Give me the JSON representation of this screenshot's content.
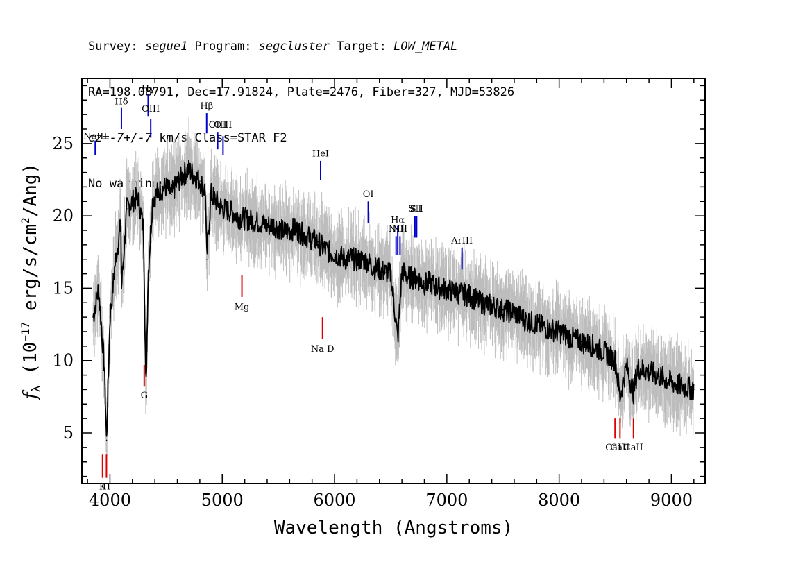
{
  "header": {
    "line1_parts": [
      {
        "text": "Survey: ",
        "italic": false
      },
      {
        "text": "segue1",
        "italic": true
      },
      {
        "text": " Program: ",
        "italic": false
      },
      {
        "text": "segcluster",
        "italic": true
      },
      {
        "text": " Target: ",
        "italic": false
      },
      {
        "text": "LOW_METAL",
        "italic": true
      }
    ],
    "line2": "RA=198.08791, Dec=17.91824, Plate=2476, Fiber=327, MJD=53826",
    "line3_parts": [
      {
        "text": "cz=-7+/-7",
        "italic": true
      },
      {
        "text": " km/s Class=STAR F2",
        "italic": false
      }
    ],
    "line4": "No warnings."
  },
  "colors": {
    "flux": "#000000",
    "error": "#bdbdbd",
    "emission": "#0000cc",
    "absorption": "#dd0000",
    "frame": "#000000"
  },
  "chart_data": {
    "type": "line",
    "xlabel": "Wavelength (Angstroms)",
    "ylabel": "f_λ (10^-17 erg/s/cm^2/Ang)",
    "ylabel_parts": {
      "f": "f",
      "sub": "λ",
      "open": " (10",
      "exp": "−17",
      "mid": " erg/s/cm",
      "exp2": "2",
      "close": "/Ang)"
    },
    "xlim": [
      3750,
      9300
    ],
    "ylim": [
      1.5,
      29.5
    ],
    "xticks": [
      4000,
      5000,
      6000,
      7000,
      8000,
      9000
    ],
    "yticks": [
      5,
      10,
      15,
      20,
      25
    ],
    "grid": false,
    "series": [
      {
        "role": "flux",
        "x": [
          3850,
          3900,
          3950,
          3970,
          4000,
          4050,
          4100,
          4102,
          4150,
          4200,
          4250,
          4300,
          4320,
          4340,
          4380,
          4450,
          4500,
          4550,
          4600,
          4650,
          4700,
          4750,
          4800,
          4850,
          4861,
          4900,
          4950,
          5000,
          5050,
          5100,
          5150,
          5200,
          5250,
          5300,
          5350,
          5400,
          5450,
          5500,
          5550,
          5600,
          5650,
          5700,
          5750,
          5800,
          5850,
          5900,
          5950,
          6000,
          6050,
          6100,
          6150,
          6200,
          6250,
          6300,
          6350,
          6400,
          6450,
          6500,
          6563,
          6600,
          6650,
          6700,
          6750,
          6800,
          6850,
          6900,
          6950,
          7000,
          7100,
          7200,
          7300,
          7400,
          7500,
          7600,
          7700,
          7800,
          7900,
          8000,
          8100,
          8200,
          8300,
          8400,
          8500,
          8542,
          8600,
          8662,
          8700,
          8800,
          8900,
          9000,
          9100,
          9200
        ],
        "y": [
          13.0,
          15.0,
          9.5,
          4.5,
          13.0,
          17.0,
          19.5,
          15.0,
          20.5,
          21.0,
          21.3,
          19.0,
          7.5,
          16.0,
          21.2,
          21.8,
          22.0,
          21.5,
          22.3,
          22.8,
          23.2,
          22.8,
          22.4,
          21.7,
          17.0,
          21.5,
          21.0,
          20.5,
          20.4,
          20.2,
          19.9,
          19.8,
          19.7,
          19.6,
          19.5,
          19.3,
          19.4,
          19.2,
          18.9,
          19.0,
          19.1,
          18.8,
          18.6,
          18.4,
          18.2,
          17.8,
          17.5,
          17.4,
          17.2,
          17.0,
          17.1,
          16.9,
          17.0,
          16.8,
          16.4,
          16.3,
          16.1,
          16.0,
          11.5,
          16.2,
          15.8,
          15.7,
          15.6,
          15.3,
          15.4,
          15.1,
          15.0,
          14.9,
          14.7,
          14.5,
          14.0,
          13.8,
          13.5,
          13.3,
          12.8,
          12.5,
          12.2,
          12.0,
          11.6,
          11.3,
          11.0,
          10.6,
          10.0,
          7.5,
          9.6,
          7.8,
          9.5,
          9.2,
          8.9,
          8.5,
          8.2,
          8.0
        ]
      }
    ],
    "emission_lines": [
      {
        "label": "NeIII",
        "x": 3869,
        "y_bottom": 24.2,
        "y_top": 25.2,
        "label_y": 25.3
      },
      {
        "label": "Hδ",
        "x": 4102,
        "y_bottom": 26.0,
        "y_top": 27.5,
        "label_y": 27.7
      },
      {
        "label": "Hγ",
        "x": 4340,
        "y_bottom": 26.9,
        "y_top": 28.4,
        "label_y": 28.6
      },
      {
        "label": "OIII",
        "x": 4363,
        "y_bottom": 25.4,
        "y_top": 26.7,
        "label_y": 27.2
      },
      {
        "label": "Hβ",
        "x": 4861,
        "y_bottom": 25.7,
        "y_top": 27.1,
        "label_y": 27.4
      },
      {
        "label": "OIII",
        "x": 4959,
        "y_bottom": 24.6,
        "y_top": 25.8,
        "label_y": 26.1
      },
      {
        "label": "OIII",
        "x": 5007,
        "y_bottom": 24.2,
        "y_top": 25.5,
        "label_y": 26.1
      },
      {
        "label": "HeI",
        "x": 5876,
        "y_bottom": 22.5,
        "y_top": 23.8,
        "label_y": 24.1
      },
      {
        "label": "OI",
        "x": 6300,
        "y_bottom": 19.5,
        "y_top": 21.0,
        "label_y": 21.3
      },
      {
        "label": "NII",
        "x": 6548,
        "y_bottom": 17.3,
        "y_top": 18.6,
        "label_y": 18.9
      },
      {
        "label": "Hα",
        "x": 6563,
        "y_bottom": 17.3,
        "y_top": 19.3,
        "label_y": 19.5
      },
      {
        "label": "NII",
        "x": 6583,
        "y_bottom": 17.3,
        "y_top": 18.6,
        "label_y": 18.9
      },
      {
        "label": "SII",
        "x": 6716,
        "y_bottom": 18.5,
        "y_top": 20.0,
        "label_y": 20.3
      },
      {
        "label": "SII",
        "x": 6731,
        "y_bottom": 18.5,
        "y_top": 20.0,
        "label_y": 20.3
      },
      {
        "label": "ArIII",
        "x": 7135,
        "y_bottom": 16.3,
        "y_top": 17.8,
        "label_y": 18.1
      }
    ],
    "absorption_lines": [
      {
        "label": "K",
        "x": 3934,
        "y_bottom": 1.9,
        "y_top": 3.5,
        "label_y": 1.1
      },
      {
        "label": "H",
        "x": 3969,
        "y_bottom": 1.9,
        "y_top": 3.5,
        "label_y": 1.1
      },
      {
        "label": "G",
        "x": 4305,
        "y_bottom": 8.2,
        "y_top": 9.7,
        "label_y": 7.4
      },
      {
        "label": "Mg",
        "x": 5175,
        "y_bottom": 14.4,
        "y_top": 15.9,
        "label_y": 13.5
      },
      {
        "label": "Na D",
        "x": 5893,
        "y_bottom": 11.5,
        "y_top": 13.0,
        "label_y": 10.6
      },
      {
        "label": "CaII",
        "x": 8498,
        "y_bottom": 4.6,
        "y_top": 6.0,
        "label_y": 3.8
      },
      {
        "label": "CaII",
        "x": 8542,
        "y_bottom": 4.6,
        "y_top": 6.0,
        "label_y": 3.8
      },
      {
        "label": "CaII",
        "x": 8662,
        "y_bottom": 4.6,
        "y_top": 6.0,
        "label_y": 3.8
      }
    ]
  }
}
